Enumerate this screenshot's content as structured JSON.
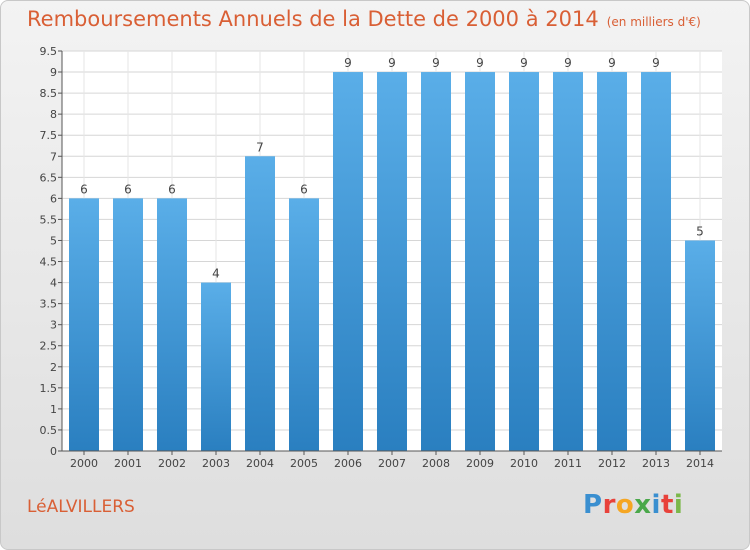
{
  "header": {
    "title": "Remboursements Annuels de la Dette de 2000 à 2014",
    "unit": "(en milliers d'€)"
  },
  "footer": {
    "commune": "LéALVILLERS",
    "brand_letters": [
      "P",
      "r",
      "o",
      "x",
      "i",
      "t",
      "i"
    ],
    "brand_colors": [
      "#3a8fd0",
      "#e8423b",
      "#f5a623",
      "#4aa84a",
      "#3a8fd0",
      "#e8423b",
      "#7bb84a"
    ]
  },
  "colors": {
    "bar_top": "#5aaee8",
    "bar_bottom": "#2a7fc0",
    "title": "#d95f35"
  },
  "chart_data": {
    "type": "bar",
    "categories": [
      "2000",
      "2001",
      "2002",
      "2003",
      "2004",
      "2005",
      "2006",
      "2007",
      "2008",
      "2009",
      "2010",
      "2011",
      "2012",
      "2013",
      "2014"
    ],
    "values": [
      6,
      6,
      6,
      4,
      7,
      6,
      9,
      9,
      9,
      9,
      9,
      9,
      9,
      9,
      5
    ],
    "data_labels": [
      "6",
      "6",
      "6",
      "4",
      "7",
      "6",
      "9",
      "9",
      "9",
      "9",
      "9",
      "9",
      "9",
      "9",
      "5"
    ],
    "yticks": [
      "0",
      "0.5",
      "1",
      "1.5",
      "2",
      "2.5",
      "3",
      "3.5",
      "4",
      "4.5",
      "5",
      "5.5",
      "6",
      "6.5",
      "7",
      "7.5",
      "8",
      "8.5",
      "9",
      "9.5"
    ],
    "ylim": [
      0,
      9.5
    ],
    "grid": true
  }
}
